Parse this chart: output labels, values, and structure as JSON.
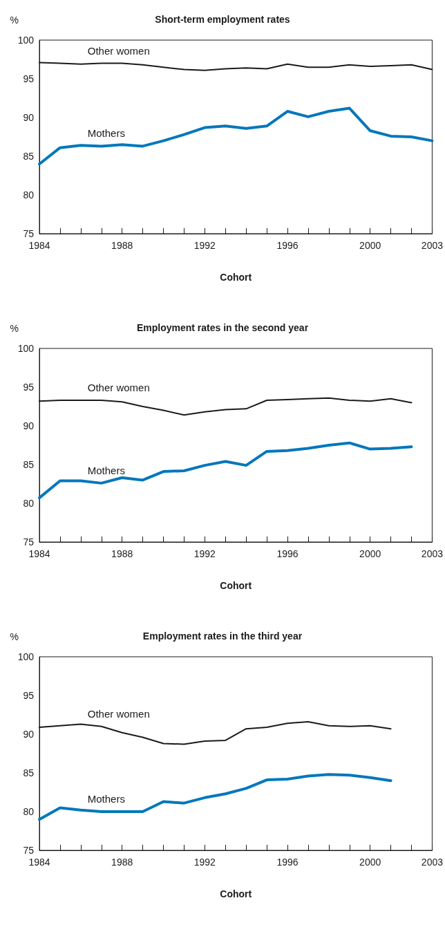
{
  "chart_data": [
    {
      "type": "line",
      "title": "Short-term employment rates",
      "xlabel": "Cohort",
      "ylabel": "%",
      "marker": "none",
      "grid": false,
      "x": [
        1984,
        1985,
        1986,
        1987,
        1988,
        1989,
        1990,
        1991,
        1992,
        1993,
        1994,
        1995,
        1996,
        1997,
        1998,
        1999,
        2000,
        2001,
        2002,
        2003
      ],
      "xlim": [
        1984,
        2003
      ],
      "xticks": [
        1984,
        {
          "value": 1985,
          "label": null
        },
        {
          "value": 1986,
          "label": null
        },
        {
          "value": 1987,
          "label": null
        },
        1988,
        {
          "value": 1989,
          "label": null
        },
        {
          "value": 1990,
          "label": null
        },
        {
          "value": 1991,
          "label": null
        },
        1992,
        {
          "value": 1993,
          "label": null
        },
        {
          "value": 1994,
          "label": null
        },
        {
          "value": 1995,
          "label": null
        },
        1996,
        {
          "value": 1997,
          "label": null
        },
        {
          "value": 1998,
          "label": null
        },
        {
          "value": 1999,
          "label": null
        },
        2000,
        {
          "value": 2001,
          "label": null
        },
        {
          "value": 2002,
          "label": null
        },
        2003
      ],
      "ylim": [
        75,
        100
      ],
      "yticks": [
        75,
        80,
        85,
        90,
        95,
        100
      ],
      "series": [
        {
          "name": "Other women",
          "color": "#1a1a1a",
          "values": [
            97.1,
            97.0,
            96.9,
            97.0,
            97.0,
            96.8,
            96.5,
            96.2,
            96.1,
            96.3,
            96.4,
            96.3,
            96.9,
            96.5,
            96.5,
            96.8,
            96.6,
            96.7,
            96.8,
            96.2
          ]
        },
        {
          "name": "Mothers",
          "color": "#0077bb",
          "values": [
            84.0,
            86.1,
            86.4,
            86.3,
            86.5,
            86.3,
            87.0,
            87.8,
            88.7,
            88.9,
            88.6,
            88.9,
            90.8,
            90.1,
            90.8,
            91.2,
            88.3,
            87.6,
            87.5,
            87.0
          ]
        }
      ]
    },
    {
      "type": "line",
      "title": "Employment rates in the second year",
      "xlabel": "Cohort",
      "ylabel": "%",
      "marker": "none",
      "grid": false,
      "x": [
        1984,
        1985,
        1986,
        1987,
        1988,
        1989,
        1990,
        1991,
        1992,
        1993,
        1994,
        1995,
        1996,
        1997,
        1998,
        1999,
        2000,
        2001,
        2002
      ],
      "xlim": [
        1984,
        2003
      ],
      "xticks": [
        1984,
        {
          "value": 1985,
          "label": null
        },
        {
          "value": 1986,
          "label": null
        },
        {
          "value": 1987,
          "label": null
        },
        1988,
        {
          "value": 1989,
          "label": null
        },
        {
          "value": 1990,
          "label": null
        },
        {
          "value": 1991,
          "label": null
        },
        1992,
        {
          "value": 1993,
          "label": null
        },
        {
          "value": 1994,
          "label": null
        },
        {
          "value": 1995,
          "label": null
        },
        1996,
        {
          "value": 1997,
          "label": null
        },
        {
          "value": 1998,
          "label": null
        },
        {
          "value": 1999,
          "label": null
        },
        2000,
        {
          "value": 2001,
          "label": null
        },
        {
          "value": 2002,
          "label": null
        },
        2003
      ],
      "ylim": [
        75,
        100
      ],
      "yticks": [
        75,
        80,
        85,
        90,
        95,
        100
      ],
      "series": [
        {
          "name": "Other women",
          "color": "#1a1a1a",
          "values": [
            93.2,
            93.3,
            93.3,
            93.3,
            93.1,
            92.5,
            92.0,
            91.4,
            91.8,
            92.1,
            92.2,
            93.3,
            93.4,
            93.5,
            93.6,
            93.3,
            93.2,
            93.5,
            93.0
          ]
        },
        {
          "name": "Mothers",
          "color": "#0077bb",
          "values": [
            80.7,
            82.9,
            82.9,
            82.6,
            83.3,
            83.0,
            84.1,
            84.2,
            84.9,
            85.4,
            84.9,
            86.7,
            86.8,
            87.1,
            87.5,
            87.8,
            87.0,
            87.1,
            87.3
          ]
        }
      ]
    },
    {
      "type": "line",
      "title": "Employment rates in the third year",
      "xlabel": "Cohort",
      "ylabel": "%",
      "marker": "none",
      "grid": false,
      "x": [
        1984,
        1985,
        1986,
        1987,
        1988,
        1989,
        1990,
        1991,
        1992,
        1993,
        1994,
        1995,
        1996,
        1997,
        1998,
        1999,
        2000,
        2001
      ],
      "xlim": [
        1984,
        2003
      ],
      "xticks": [
        1984,
        {
          "value": 1985,
          "label": null
        },
        {
          "value": 1986,
          "label": null
        },
        {
          "value": 1987,
          "label": null
        },
        1988,
        {
          "value": 1989,
          "label": null
        },
        {
          "value": 1990,
          "label": null
        },
        {
          "value": 1991,
          "label": null
        },
        1992,
        {
          "value": 1993,
          "label": null
        },
        {
          "value": 1994,
          "label": null
        },
        {
          "value": 1995,
          "label": null
        },
        1996,
        {
          "value": 1997,
          "label": null
        },
        {
          "value": 1998,
          "label": null
        },
        {
          "value": 1999,
          "label": null
        },
        2000,
        {
          "value": 2001,
          "label": null
        },
        {
          "value": 2002,
          "label": null
        },
        2003
      ],
      "ylim": [
        75,
        100
      ],
      "yticks": [
        75,
        80,
        85,
        90,
        95,
        100
      ],
      "series": [
        {
          "name": "Other women",
          "color": "#1a1a1a",
          "values": [
            90.9,
            91.1,
            91.3,
            91.0,
            90.2,
            89.6,
            88.8,
            88.7,
            89.1,
            89.2,
            90.7,
            90.9,
            91.4,
            91.6,
            91.1,
            91.0,
            91.1,
            90.7
          ]
        },
        {
          "name": "Mothers",
          "color": "#0077bb",
          "values": [
            79.0,
            80.5,
            80.2,
            80.0,
            80.0,
            80.0,
            81.3,
            81.1,
            81.8,
            82.3,
            83.0,
            84.1,
            84.2,
            84.6,
            84.8,
            84.7,
            84.4,
            84.0
          ]
        }
      ]
    }
  ]
}
